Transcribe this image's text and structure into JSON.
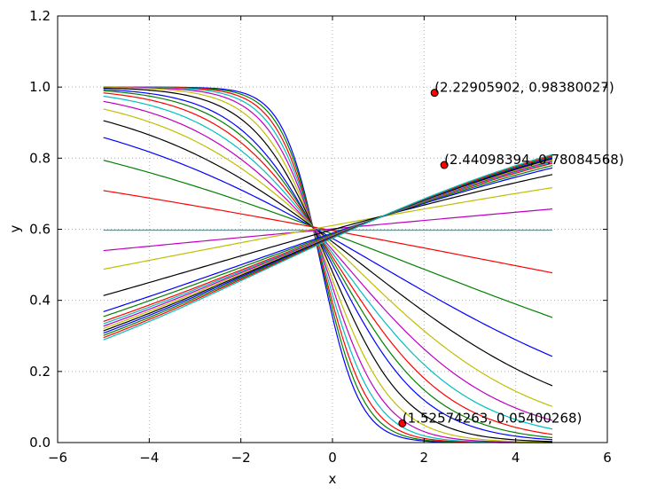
{
  "chart_data": {
    "type": "line",
    "xlabel": "x",
    "ylabel": "y",
    "xlim": [
      -6,
      6
    ],
    "ylim": [
      0.0,
      1.2
    ],
    "x_ticks": [
      -6,
      -4,
      -2,
      0,
      2,
      4,
      6
    ],
    "x_tick_labels": [
      "−6",
      "−4",
      "−2",
      "0",
      "2",
      "4",
      "6"
    ],
    "y_ticks": [
      0.0,
      0.2,
      0.4,
      0.6,
      0.8,
      1.0,
      1.2
    ],
    "y_tick_labels": [
      "0.0",
      "0.2",
      "0.4",
      "0.6",
      "0.8",
      "1.0",
      "1.2"
    ],
    "grid": true,
    "x_range": [
      -5,
      4.8
    ],
    "series_colors": [
      "#0000ff",
      "#008000",
      "#ff0000",
      "#00bfbf",
      "#bf00bf",
      "#bfbf00",
      "#000000"
    ],
    "series": [
      {
        "w": -2.4,
        "b": -0.6
      },
      {
        "w": -2.2,
        "b": -0.51
      },
      {
        "w": -2.0,
        "b": -0.43
      },
      {
        "w": -1.8,
        "b": -0.34
      },
      {
        "w": -1.6,
        "b": -0.25
      },
      {
        "w": -1.4,
        "b": -0.17
      },
      {
        "w": -1.2,
        "b": -0.08
      },
      {
        "w": -1.0,
        "b": 0.0
      },
      {
        "w": -0.9,
        "b": 0.05
      },
      {
        "w": -0.8,
        "b": 0.09
      },
      {
        "w": -0.7,
        "b": 0.13
      },
      {
        "w": -0.6,
        "b": 0.17
      },
      {
        "w": -0.5,
        "b": 0.22
      },
      {
        "w": -0.4,
        "b": 0.26
      },
      {
        "w": -0.3,
        "b": 0.3
      },
      {
        "w": -0.2,
        "b": 0.35
      },
      {
        "w": -0.1,
        "b": 0.39
      },
      {
        "w": 0.0,
        "b": 0.395
      },
      {
        "w": 0.05,
        "b": 0.41
      },
      {
        "w": 0.1,
        "b": 0.45
      },
      {
        "w": 0.15,
        "b": 0.4
      },
      {
        "w": 0.18,
        "b": 0.36
      },
      {
        "w": 0.19,
        "b": 0.35
      },
      {
        "w": 0.2,
        "b": 0.34
      },
      {
        "w": 0.205,
        "b": 0.335
      },
      {
        "w": 0.21,
        "b": 0.33
      },
      {
        "w": 0.215,
        "b": 0.325
      },
      {
        "w": 0.22,
        "b": 0.32
      },
      {
        "w": 0.225,
        "b": 0.315
      },
      {
        "w": 0.23,
        "b": 0.31
      },
      {
        "w": 0.235,
        "b": 0.305
      },
      {
        "w": 0.24,
        "b": 0.3
      }
    ],
    "points": [
      {
        "x": 2.22905902,
        "y": 0.98380027,
        "label": "(2.22905902, 0.98380027)"
      },
      {
        "x": 2.44098394,
        "y": 0.78084568,
        "label": "(2.44098394, 0.78084568)"
      },
      {
        "x": 1.52574263,
        "y": 0.05400268,
        "label": "(1.52574263, 0.05400268)"
      }
    ]
  }
}
